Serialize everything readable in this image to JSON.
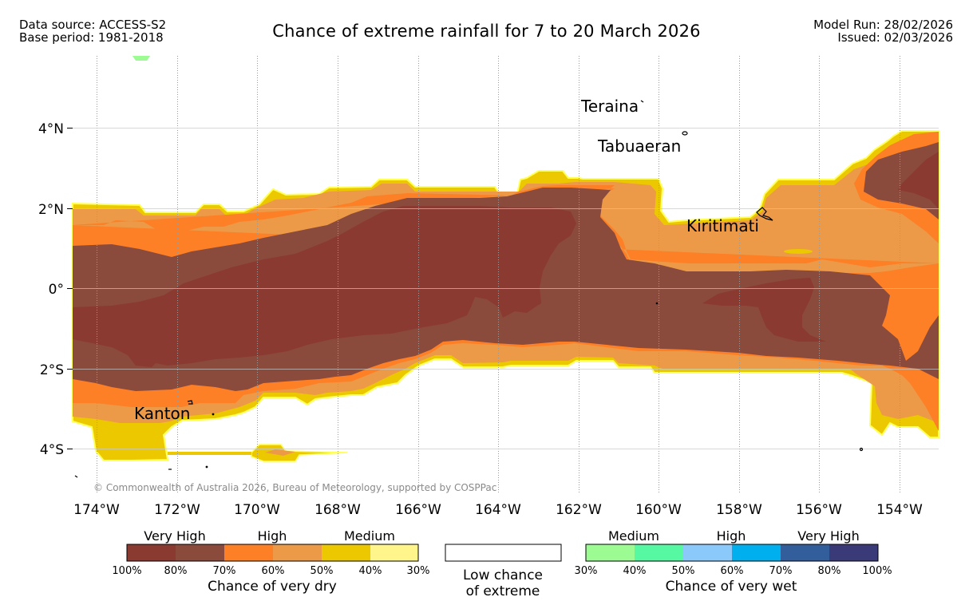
{
  "header": {
    "data_source": "Data source: ACCESS-S2",
    "base_period": "Base period: 1981-2018",
    "title": "Chance of extreme rainfall for 7 to 20 March 2026",
    "model_run": "Model Run: 28/02/2026",
    "issued": "Issued: 02/03/2026"
  },
  "map": {
    "copyright": "© Commonwealth of Australia 2026, Bureau of Meteorology, supported by COSPPac",
    "lat_labels": [
      "4°N",
      "2°N",
      "0°",
      "2°S",
      "4°S"
    ],
    "lon_labels": [
      "174°W",
      "172°W",
      "170°W",
      "168°W",
      "166°W",
      "164°W",
      "162°W",
      "160°W",
      "158°W",
      "156°W",
      "154°W"
    ],
    "places": [
      "Teraina",
      "Tabuaeran",
      "Kiritimati",
      "Kanton"
    ]
  },
  "legend": {
    "dry": {
      "group_labels": [
        "Very High",
        "High",
        "Medium"
      ],
      "colors": [
        "#8a3a31",
        "#8a4a3c",
        "#fd7f26",
        "#ec9a48",
        "#ecc800",
        "#fff58a"
      ],
      "ticks": [
        "100%",
        "80%",
        "70%",
        "60%",
        "50%",
        "40%",
        "30%"
      ],
      "title": "Chance of very dry"
    },
    "low": {
      "line1": "Low chance",
      "line2": "of extreme"
    },
    "wet": {
      "group_labels": [
        "Medium",
        "High",
        "Very High"
      ],
      "colors": [
        "#9dfb94",
        "#56f8a2",
        "#8ac9fa",
        "#00b0ee",
        "#335e9c",
        "#3b3a78"
      ],
      "ticks": [
        "30%",
        "40%",
        "50%",
        "60%",
        "70%",
        "80%",
        "100%"
      ],
      "title": "Chance of very wet"
    }
  },
  "colors": {
    "very_high_dry": "#8a3a31",
    "very_high_dry_2": "#8a4a3c",
    "high_dry": "#fd7f26",
    "high_dry_2": "#ec9a48",
    "medium_dry": "#ecc800",
    "medium_dry_2": "#fff58a",
    "medium_wet": "#9dfb94"
  }
}
